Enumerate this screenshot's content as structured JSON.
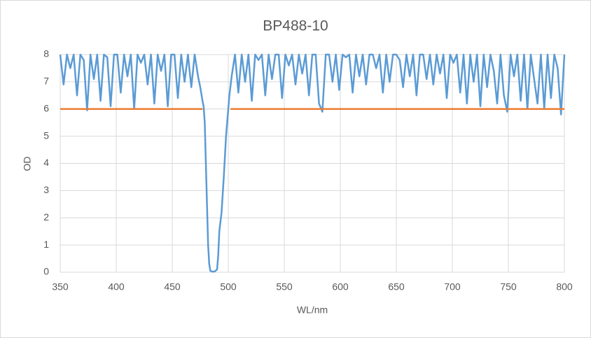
{
  "chart_data": {
    "type": "line",
    "title": "BP488-10",
    "x_label": "WL/nm",
    "y_label": "OD",
    "xlim": [
      350,
      800
    ],
    "xticks": [
      350,
      400,
      450,
      500,
      550,
      600,
      650,
      700,
      750,
      800
    ],
    "ylim": [
      0,
      8
    ],
    "yticks": [
      0,
      1,
      2,
      3,
      4,
      5,
      6,
      7,
      8
    ],
    "grid": true,
    "series": [
      {
        "color": "#5b9bd5",
        "x": [
          350,
          353,
          356,
          359,
          362,
          365,
          368,
          371,
          374,
          377,
          380,
          383,
          386,
          389,
          392,
          395,
          398,
          401,
          404,
          407,
          410,
          413,
          416,
          419,
          422,
          425,
          428,
          431,
          434,
          437,
          440,
          443,
          446,
          449,
          452,
          455,
          458,
          461,
          464,
          467,
          470,
          473,
          475,
          477,
          478,
          479,
          480,
          481,
          482,
          483,
          484,
          486,
          488,
          490,
          491,
          492,
          494,
          496,
          498,
          500,
          501,
          503,
          506,
          509,
          512,
          515,
          518,
          521,
          524,
          527,
          530,
          533,
          536,
          539,
          542,
          545,
          548,
          551,
          554,
          557,
          560,
          563,
          566,
          569,
          572,
          575,
          578,
          581,
          584,
          587,
          590,
          593,
          596,
          599,
          602,
          605,
          608,
          611,
          614,
          617,
          620,
          623,
          626,
          629,
          632,
          635,
          638,
          641,
          644,
          647,
          650,
          653,
          656,
          659,
          662,
          665,
          668,
          671,
          674,
          677,
          680,
          683,
          686,
          689,
          692,
          695,
          698,
          701,
          704,
          707,
          710,
          713,
          716,
          719,
          722,
          725,
          728,
          731,
          734,
          737,
          740,
          743,
          746,
          749,
          752,
          755,
          758,
          761,
          764,
          767,
          770,
          773,
          776,
          779,
          782,
          785,
          788,
          791,
          794,
          797,
          800
        ],
        "values": [
          8,
          6.9,
          8,
          7.5,
          8,
          6.5,
          8,
          7.8,
          5.95,
          8,
          7.1,
          8,
          6.3,
          8,
          7.9,
          6.1,
          8,
          8,
          6.6,
          8,
          7.2,
          8,
          6.0,
          8,
          7.7,
          8,
          6.9,
          8,
          6.2,
          8,
          7.4,
          8,
          6.1,
          8,
          8,
          6.4,
          8,
          7.0,
          8,
          6.8,
          8,
          7.2,
          6.8,
          6.3,
          6.1,
          5.5,
          4.0,
          2.5,
          1.0,
          0.3,
          0.05,
          0.02,
          0.03,
          0.1,
          0.6,
          1.5,
          2.2,
          3.5,
          5.0,
          6.0,
          6.5,
          7.2,
          8,
          6.6,
          8,
          7.0,
          8,
          6.3,
          8,
          7.8,
          8,
          6.5,
          8,
          7.1,
          8,
          8,
          6.4,
          8,
          7.6,
          8,
          6.9,
          8,
          7.3,
          8,
          6.5,
          8,
          8,
          6.2,
          5.9,
          8,
          8,
          7.0,
          8,
          6.7,
          8,
          7.9,
          8,
          6.6,
          8,
          7.2,
          8,
          6.9,
          8,
          8,
          7.5,
          8,
          6.6,
          8,
          7.0,
          8,
          8,
          7.8,
          6.8,
          8,
          7.2,
          8,
          6.5,
          8,
          8,
          7.1,
          8,
          6.9,
          8,
          7.3,
          8,
          6.4,
          8,
          7.7,
          8,
          6.6,
          8,
          6.2,
          8,
          7.0,
          8,
          6.1,
          8,
          6.8,
          8,
          7.4,
          6.2,
          8,
          6.5,
          5.9,
          8,
          7.2,
          8,
          6.3,
          8,
          6.0,
          8,
          7.1,
          6.2,
          8,
          6.0,
          8,
          6.4,
          8,
          7.5,
          5.8,
          8
        ]
      },
      {
        "color": "#ed7d31",
        "x": [
          350,
          477,
          490,
          502,
          800
        ],
        "values": [
          6,
          6,
          null,
          6,
          6
        ]
      }
    ]
  }
}
